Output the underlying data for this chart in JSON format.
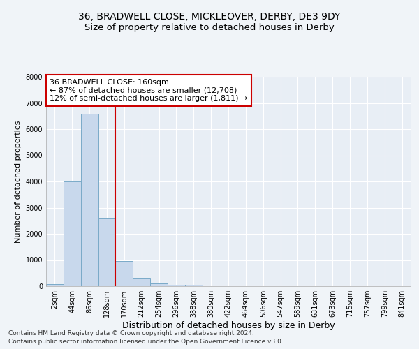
{
  "title": "36, BRADWELL CLOSE, MICKLEOVER, DERBY, DE3 9DY",
  "subtitle": "Size of property relative to detached houses in Derby",
  "xlabel": "Distribution of detached houses by size in Derby",
  "ylabel": "Number of detached properties",
  "footnote1": "Contains HM Land Registry data © Crown copyright and database right 2024.",
  "footnote2": "Contains public sector information licensed under the Open Government Licence v3.0.",
  "bar_labels": [
    "2sqm",
    "44sqm",
    "86sqm",
    "128sqm",
    "170sqm",
    "212sqm",
    "254sqm",
    "296sqm",
    "338sqm",
    "380sqm",
    "422sqm",
    "464sqm",
    "506sqm",
    "547sqm",
    "589sqm",
    "631sqm",
    "673sqm",
    "715sqm",
    "757sqm",
    "799sqm",
    "841sqm"
  ],
  "bar_values": [
    70,
    4000,
    6600,
    2600,
    950,
    330,
    100,
    50,
    50,
    0,
    0,
    0,
    0,
    0,
    0,
    0,
    0,
    0,
    0,
    0,
    0
  ],
  "bar_color": "#c8d8ec",
  "bar_edge_color": "#7aaac8",
  "vline_x": 3.5,
  "vline_color": "#cc0000",
  "annotation_text": "36 BRADWELL CLOSE: 160sqm\n← 87% of detached houses are smaller (12,708)\n12% of semi-detached houses are larger (1,811) →",
  "annotation_box_color": "#ffffff",
  "annotation_box_edge_color": "#cc0000",
  "ylim": [
    0,
    8000
  ],
  "yticks": [
    0,
    1000,
    2000,
    3000,
    4000,
    5000,
    6000,
    7000,
    8000
  ],
  "background_color": "#f0f4f8",
  "plot_background_color": "#e8eef5",
  "grid_color": "#ffffff",
  "title_fontsize": 10,
  "subtitle_fontsize": 9.5,
  "xlabel_fontsize": 9,
  "ylabel_fontsize": 8,
  "tick_fontsize": 7,
  "annotation_fontsize": 8,
  "footnote_fontsize": 6.5
}
